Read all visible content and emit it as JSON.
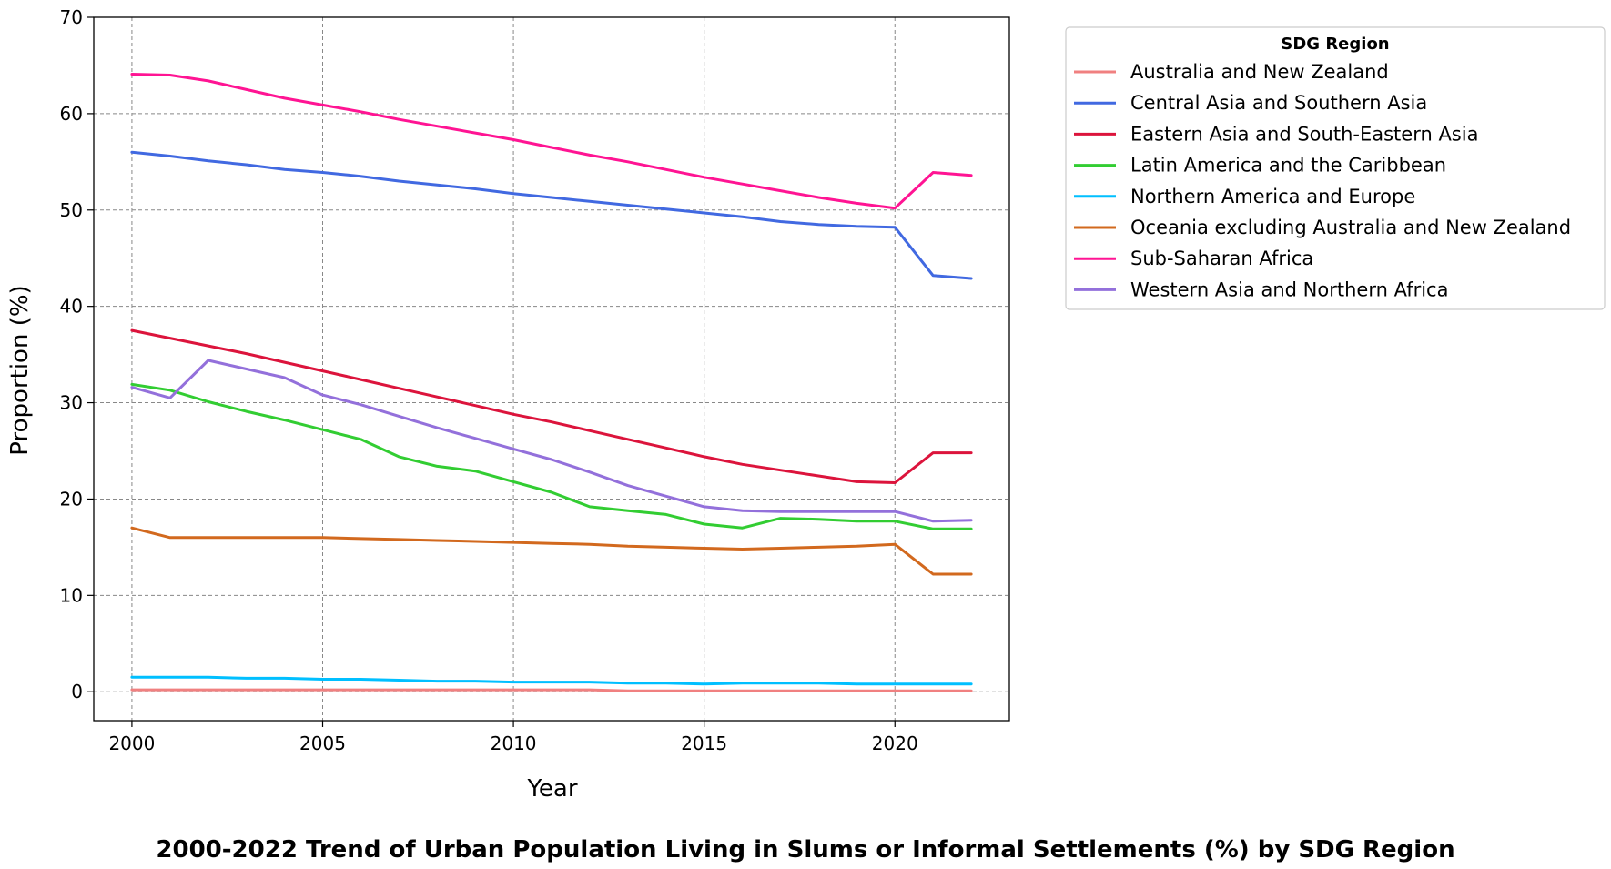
{
  "chart_data": {
    "type": "line",
    "title": "2000-2022 Trend of Urban Population Living in Slums or Informal Settlements (%) by SDG Region",
    "xlabel": "Year",
    "ylabel": "Proportion (%)",
    "xlim": [
      1999,
      2023
    ],
    "ylim": [
      -3,
      70
    ],
    "xticks": [
      2000,
      2005,
      2010,
      2015,
      2020
    ],
    "yticks": [
      0,
      10,
      20,
      30,
      40,
      50,
      60,
      70
    ],
    "grid": true,
    "legend": {
      "title": "SDG Region",
      "placement": "outside-top-right"
    },
    "x": [
      2000,
      2001,
      2002,
      2003,
      2004,
      2005,
      2006,
      2007,
      2008,
      2009,
      2010,
      2011,
      2012,
      2013,
      2014,
      2015,
      2016,
      2017,
      2018,
      2019,
      2020,
      2021,
      2022
    ],
    "series": [
      {
        "name": "Australia and New Zealand",
        "color": "#f08080",
        "values": [
          0.2,
          0.2,
          0.2,
          0.2,
          0.2,
          0.2,
          0.2,
          0.2,
          0.2,
          0.2,
          0.2,
          0.2,
          0.2,
          0.1,
          0.1,
          0.1,
          0.1,
          0.1,
          0.1,
          0.1,
          0.1,
          0.1,
          0.1
        ]
      },
      {
        "name": "Central Asia and Southern Asia",
        "color": "#4169e1",
        "values": [
          56.0,
          55.6,
          55.1,
          54.7,
          54.2,
          53.9,
          53.5,
          53.0,
          52.6,
          52.2,
          51.7,
          51.3,
          50.9,
          50.5,
          50.1,
          49.7,
          49.3,
          48.8,
          48.5,
          48.3,
          48.2,
          43.2,
          42.9
        ]
      },
      {
        "name": "Eastern Asia and South-Eastern Asia",
        "color": "#dc143c",
        "values": [
          37.5,
          36.7,
          35.9,
          35.1,
          34.2,
          33.3,
          32.4,
          31.5,
          30.6,
          29.7,
          28.8,
          28.0,
          27.1,
          26.2,
          25.3,
          24.4,
          23.6,
          23.0,
          22.4,
          21.8,
          21.7,
          24.8,
          24.8
        ]
      },
      {
        "name": "Latin America and the Caribbean",
        "color": "#32cd32",
        "values": [
          31.9,
          31.3,
          30.1,
          29.1,
          28.2,
          27.2,
          26.2,
          24.4,
          23.4,
          22.9,
          21.8,
          20.7,
          19.2,
          18.8,
          18.4,
          17.4,
          17.0,
          18.0,
          17.9,
          17.7,
          17.7,
          16.9,
          16.9
        ]
      },
      {
        "name": "Northern America and Europe",
        "color": "#00bfff",
        "values": [
          1.5,
          1.5,
          1.5,
          1.4,
          1.4,
          1.3,
          1.3,
          1.2,
          1.1,
          1.1,
          1.0,
          1.0,
          1.0,
          0.9,
          0.9,
          0.8,
          0.9,
          0.9,
          0.9,
          0.8,
          0.8,
          0.8,
          0.8
        ]
      },
      {
        "name": "Oceania excluding Australia and New Zealand",
        "color": "#d2691e",
        "values": [
          17.0,
          16.0,
          16.0,
          16.0,
          16.0,
          16.0,
          15.9,
          15.8,
          15.7,
          15.6,
          15.5,
          15.4,
          15.3,
          15.1,
          15.0,
          14.9,
          14.8,
          14.9,
          15.0,
          15.1,
          15.3,
          12.2,
          12.2
        ]
      },
      {
        "name": "Sub-Saharan Africa",
        "color": "#ff1493",
        "values": [
          64.1,
          64.0,
          63.4,
          62.5,
          61.6,
          60.9,
          60.2,
          59.4,
          58.7,
          58.0,
          57.3,
          56.5,
          55.7,
          55.0,
          54.2,
          53.4,
          52.7,
          52.0,
          51.3,
          50.7,
          50.2,
          53.9,
          53.6
        ]
      },
      {
        "name": "Western Asia and Northern Africa",
        "color": "#9370db",
        "values": [
          31.6,
          30.5,
          34.4,
          33.5,
          32.6,
          30.8,
          29.8,
          28.6,
          27.4,
          26.3,
          25.2,
          24.1,
          22.8,
          21.4,
          20.3,
          19.2,
          18.8,
          18.7,
          18.7,
          18.7,
          18.7,
          17.7,
          17.8
        ]
      }
    ]
  }
}
